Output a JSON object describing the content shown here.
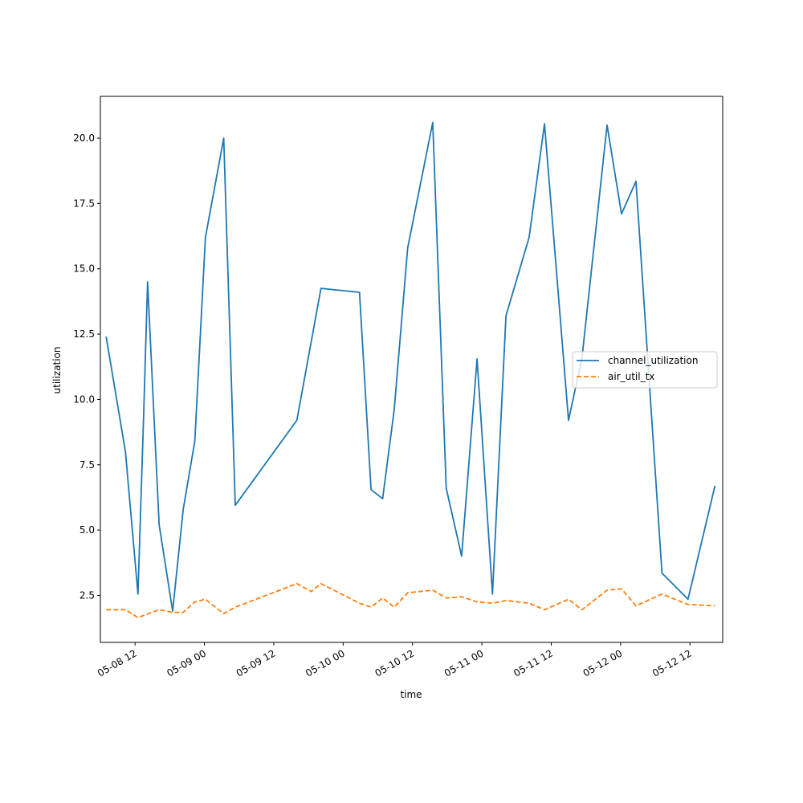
{
  "chart_data": {
    "type": "line",
    "xlabel": "time",
    "ylabel": "utilization",
    "x_range": [
      "2025-05-08 06:00",
      "2025-05-12 17:40"
    ],
    "ylim": [
      0.7,
      21.6
    ],
    "x_ticks": [
      {
        "t": "2025-05-08 12:00",
        "label": "05-08 12"
      },
      {
        "t": "2025-05-09 00:00",
        "label": "05-09 00"
      },
      {
        "t": "2025-05-09 12:00",
        "label": "05-09 12"
      },
      {
        "t": "2025-05-10 00:00",
        "label": "05-10 00"
      },
      {
        "t": "2025-05-10 12:00",
        "label": "05-10 12"
      },
      {
        "t": "2025-05-11 00:00",
        "label": "05-11 00"
      },
      {
        "t": "2025-05-11 12:00",
        "label": "05-11 12"
      },
      {
        "t": "2025-05-12 00:00",
        "label": "05-12 00"
      },
      {
        "t": "2025-05-12 12:00",
        "label": "05-12 12"
      }
    ],
    "y_ticks": [
      {
        "v": 2.5,
        "label": "2.5"
      },
      {
        "v": 5.0,
        "label": "5.0"
      },
      {
        "v": 7.5,
        "label": "7.5"
      },
      {
        "v": 10.0,
        "label": "10.0"
      },
      {
        "v": 12.5,
        "label": "12.5"
      },
      {
        "v": 15.0,
        "label": "15.0"
      },
      {
        "v": 17.5,
        "label": "17.5"
      },
      {
        "v": 20.0,
        "label": "20.0"
      }
    ],
    "grid": false,
    "legend_position": "center-right",
    "series": [
      {
        "name": "channel_utilization",
        "color": "#1f77b4",
        "dash": "solid",
        "points": [
          [
            "2025-05-08 07:00",
            12.4
          ],
          [
            "2025-05-08 10:20",
            8.0
          ],
          [
            "2025-05-08 12:30",
            2.55
          ],
          [
            "2025-05-08 13:30",
            9.5
          ],
          [
            "2025-05-08 14:10",
            14.5
          ],
          [
            "2025-05-08 16:10",
            5.2
          ],
          [
            "2025-05-08 18:30",
            1.9
          ],
          [
            "2025-05-08 20:20",
            5.8
          ],
          [
            "2025-05-08 22:20",
            8.4
          ],
          [
            "2025-05-09 00:10",
            16.2
          ],
          [
            "2025-05-09 03:20",
            20.0
          ],
          [
            "2025-05-09 05:20",
            5.95
          ],
          [
            "2025-05-09 16:00",
            9.2
          ],
          [
            "2025-05-09 20:10",
            14.25
          ],
          [
            "2025-05-10 02:50",
            14.1
          ],
          [
            "2025-05-10 04:50",
            6.55
          ],
          [
            "2025-05-10 06:50",
            6.2
          ],
          [
            "2025-05-10 08:50",
            9.6
          ],
          [
            "2025-05-10 11:10",
            15.8
          ],
          [
            "2025-05-10 15:30",
            20.6
          ],
          [
            "2025-05-10 17:50",
            6.6
          ],
          [
            "2025-05-10 20:30",
            4.0
          ],
          [
            "2025-05-10 23:10",
            11.55
          ],
          [
            "2025-05-11 01:50",
            2.55
          ],
          [
            "2025-05-11 04:10",
            13.2
          ],
          [
            "2025-05-11 08:10",
            16.2
          ],
          [
            "2025-05-11 10:50",
            20.55
          ],
          [
            "2025-05-11 15:00",
            9.2
          ],
          [
            "2025-05-11 17:20",
            11.6
          ],
          [
            "2025-05-11 21:40",
            20.5
          ],
          [
            "2025-05-12 00:10",
            17.1
          ],
          [
            "2025-05-12 02:40",
            18.35
          ],
          [
            "2025-05-12 07:10",
            3.35
          ],
          [
            "2025-05-12 11:40",
            2.35
          ],
          [
            "2025-05-12 16:20",
            6.7
          ]
        ]
      },
      {
        "name": "air_util_tx",
        "color": "#ff7f0e",
        "dash": "dashed",
        "points": [
          [
            "2025-05-08 07:00",
            1.95
          ],
          [
            "2025-05-08 10:20",
            1.95
          ],
          [
            "2025-05-08 12:30",
            1.65
          ],
          [
            "2025-05-08 16:10",
            1.95
          ],
          [
            "2025-05-08 18:30",
            1.85
          ],
          [
            "2025-05-08 20:20",
            1.85
          ],
          [
            "2025-05-08 22:20",
            2.25
          ],
          [
            "2025-05-09 00:10",
            2.35
          ],
          [
            "2025-05-09 03:20",
            1.8
          ],
          [
            "2025-05-09 05:20",
            2.05
          ],
          [
            "2025-05-09 16:00",
            2.95
          ],
          [
            "2025-05-09 18:30",
            2.65
          ],
          [
            "2025-05-09 20:10",
            2.95
          ],
          [
            "2025-05-10 02:50",
            2.2
          ],
          [
            "2025-05-10 04:50",
            2.05
          ],
          [
            "2025-05-10 06:50",
            2.4
          ],
          [
            "2025-05-10 08:50",
            2.05
          ],
          [
            "2025-05-10 11:10",
            2.6
          ],
          [
            "2025-05-10 15:30",
            2.7
          ],
          [
            "2025-05-10 17:50",
            2.4
          ],
          [
            "2025-05-10 20:30",
            2.45
          ],
          [
            "2025-05-10 23:10",
            2.25
          ],
          [
            "2025-05-11 01:50",
            2.2
          ],
          [
            "2025-05-11 04:10",
            2.3
          ],
          [
            "2025-05-11 08:10",
            2.2
          ],
          [
            "2025-05-11 10:50",
            1.95
          ],
          [
            "2025-05-11 15:00",
            2.35
          ],
          [
            "2025-05-11 17:20",
            1.95
          ],
          [
            "2025-05-11 21:40",
            2.7
          ],
          [
            "2025-05-12 00:10",
            2.75
          ],
          [
            "2025-05-12 02:40",
            2.1
          ],
          [
            "2025-05-12 07:10",
            2.55
          ],
          [
            "2025-05-12 11:40",
            2.15
          ],
          [
            "2025-05-12 16:20",
            2.1
          ]
        ]
      }
    ]
  }
}
